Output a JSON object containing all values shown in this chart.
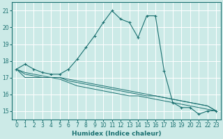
{
  "title": "",
  "xlabel": "Humidex (Indice chaleur)",
  "ylabel": "",
  "background_color": "#cceae7",
  "grid_color": "#ffffff",
  "line_color": "#1a7070",
  "xlim": [
    -0.5,
    23.5
  ],
  "ylim": [
    14.5,
    21.5
  ],
  "yticks": [
    15,
    16,
    17,
    18,
    19,
    20,
    21
  ],
  "xticks": [
    0,
    1,
    2,
    3,
    4,
    5,
    6,
    7,
    8,
    9,
    10,
    11,
    12,
    13,
    14,
    15,
    16,
    17,
    18,
    19,
    20,
    21,
    22,
    23
  ],
  "series_main": [
    17.5,
    17.8,
    17.5,
    17.3,
    17.2,
    17.2,
    17.5,
    18.1,
    18.8,
    19.5,
    20.3,
    21.0,
    20.5,
    20.3,
    19.4,
    20.7,
    20.7,
    17.4,
    15.5,
    15.2,
    15.2,
    14.8,
    15.0,
    15.0
  ],
  "series_flat": [
    [
      17.5,
      17.0,
      17.0,
      17.0,
      17.0,
      17.0,
      16.8,
      16.7,
      16.6,
      16.5,
      16.4,
      16.3,
      16.2,
      16.1,
      16.0,
      15.9,
      15.9,
      15.8,
      15.7,
      15.6,
      15.5,
      15.4,
      15.3,
      15.0
    ],
    [
      17.5,
      17.2,
      17.1,
      17.0,
      17.0,
      16.9,
      16.7,
      16.5,
      16.4,
      16.3,
      16.2,
      16.1,
      16.0,
      15.9,
      15.9,
      15.8,
      15.7,
      15.6,
      15.5,
      15.4,
      15.3,
      15.2,
      15.1,
      15.0
    ],
    [
      17.5,
      17.3,
      17.2,
      17.1,
      17.0,
      17.0,
      16.9,
      16.8,
      16.7,
      16.6,
      16.5,
      16.4,
      16.3,
      16.2,
      16.1,
      16.0,
      15.9,
      15.8,
      15.7,
      15.6,
      15.5,
      15.4,
      15.3,
      15.0
    ]
  ],
  "xlabel_fontsize": 6.5,
  "tick_fontsize": 5.5
}
